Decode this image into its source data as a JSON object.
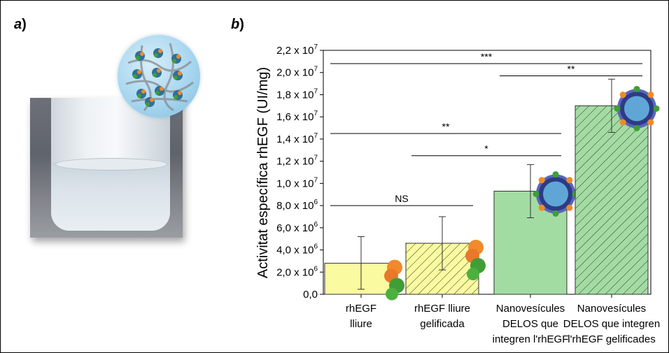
{
  "panels": {
    "a_label": "a",
    "b_label": "b",
    "paren": ")"
  },
  "chart_data": {
    "type": "bar",
    "ylabel": "Activitat específica rhEGF (UI/mg)",
    "ylim": [
      0,
      22000000
    ],
    "yticks": [
      {
        "value": 0,
        "mant": "0,0",
        "exp": ""
      },
      {
        "value": 2000000,
        "mant": "2,0 x 10",
        "exp": "6"
      },
      {
        "value": 4000000,
        "mant": "4,0 x 10",
        "exp": "6"
      },
      {
        "value": 6000000,
        "mant": "6,0 x 10",
        "exp": "6"
      },
      {
        "value": 8000000,
        "mant": "8,0 x 10",
        "exp": "6"
      },
      {
        "value": 10000000,
        "mant": "1,0 x 10",
        "exp": "7"
      },
      {
        "value": 12000000,
        "mant": "1,2 x 10",
        "exp": "7"
      },
      {
        "value": 14000000,
        "mant": "1,4 x 10",
        "exp": "7"
      },
      {
        "value": 16000000,
        "mant": "1,6 x 10",
        "exp": "7"
      },
      {
        "value": 18000000,
        "mant": "1,8 x 10",
        "exp": "7"
      },
      {
        "value": 20000000,
        "mant": "2,0 x 10",
        "exp": "7"
      },
      {
        "value": 22000000,
        "mant": "2,2 x 10",
        "exp": "7"
      }
    ],
    "bars": [
      {
        "label_lines": [
          "rhEGF",
          "lliure"
        ],
        "value": 2800000,
        "error_low": 450000,
        "error_high": 5200000,
        "fill": "#fafaa0",
        "hatched": false
      },
      {
        "label_lines": [
          "rhEGF lliure",
          "gelificada"
        ],
        "value": 4600000,
        "error_low": 2200000,
        "error_high": 7000000,
        "fill": "#fafaa0",
        "hatched": true
      },
      {
        "label_lines": [
          "Nanovesícules",
          "DELOS que",
          "integren l'rhEGF"
        ],
        "value": 9300000,
        "error_low": 6900000,
        "error_high": 11700000,
        "fill": "#a3dca3",
        "hatched": false
      },
      {
        "label_lines": [
          "Nanovesícules",
          "DELOS que integren",
          "l'rhEGF gelificades"
        ],
        "value": 17000000,
        "error_low": 14600000,
        "error_high": 19400000,
        "fill": "#a3dca3",
        "hatched": true
      }
    ],
    "significance": [
      {
        "label": "NS",
        "y": 8000000,
        "from": 0,
        "to": 1
      },
      {
        "label": "*",
        "y": 12500000,
        "from": 1,
        "to": 2
      },
      {
        "label": "**",
        "y": 14500000,
        "from": 0,
        "to": 2
      },
      {
        "label": "**",
        "y": 19700000,
        "from": 2,
        "to": 3
      },
      {
        "label": "***",
        "y": 20800000,
        "from": 0,
        "to": 3
      }
    ],
    "colors": {
      "yellow": "#fafaa0",
      "green": "#a3dca3",
      "axis": "#000000"
    }
  }
}
